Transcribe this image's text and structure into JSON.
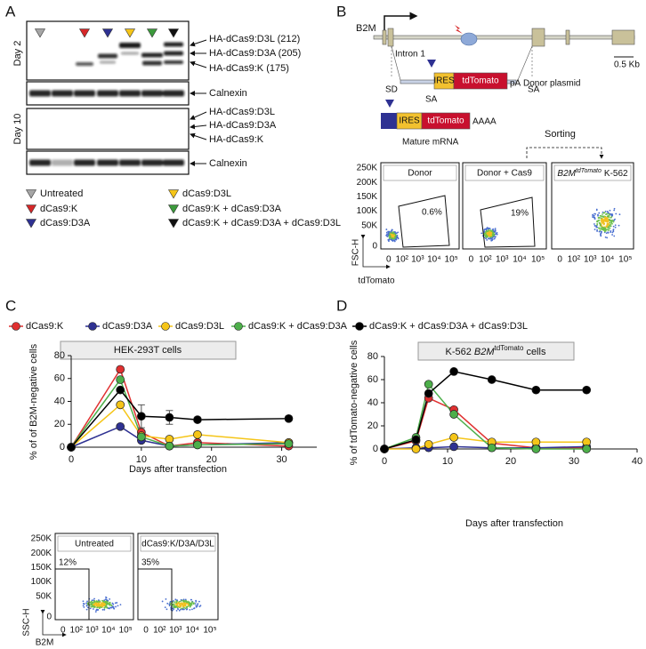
{
  "panel_a": {
    "label": "A",
    "day_labels": [
      "Day 2",
      "Day 10"
    ],
    "day2_bands": [
      "HA-dCas9:D3L (212)",
      "HA-dCas9:D3A (205)",
      "HA-dCas9:K (175)"
    ],
    "day10_bands": [
      "HA-dCas9:D3L",
      "HA-dCas9:D3A",
      "HA-dCas9:K"
    ],
    "loading_control": "Calnexin",
    "legend": [
      {
        "name": "Untreated",
        "color": "#a6a6a6"
      },
      {
        "name": "dCas9:K",
        "color": "#d62728"
      },
      {
        "name": "dCas9:D3A",
        "color": "#2e3192"
      },
      {
        "name": "dCas9:D3L",
        "color": "#f5c518"
      },
      {
        "name": "dCas9:K + dCas9:D3A",
        "color": "#3c9a3c"
      },
      {
        "name": "dCas9:K + dCas9:D3A + dCas9:D3L",
        "color": "#111111"
      }
    ]
  },
  "panel_b": {
    "label": "B",
    "gene": "B2M",
    "intron": "Intron 1",
    "sd": "SD",
    "sa": "SA",
    "scale": "0.5 Kb",
    "ires": "IRES",
    "reporter": "tdTomato",
    "polya": "pA",
    "donor": "Donor plasmid",
    "polya_tail": "AAAA",
    "mrna": "Mature mRNA",
    "sorting": "Sorting",
    "flow": {
      "y_axis": "FSC-H",
      "x_axis": "tdTomato",
      "yticks": [
        "250K",
        "200K",
        "150K",
        "100K",
        "50K",
        "0"
      ],
      "xticks": [
        "0",
        "10²",
        "10³",
        "10⁴",
        "10⁵"
      ],
      "plots": [
        {
          "title": "Donor",
          "gate": "0.6%"
        },
        {
          "title": "Donor + Cas9",
          "gate": "19%"
        },
        {
          "title_gene": "B2M",
          "title_sup": "tdTomato",
          "title_suffix": "K-562"
        }
      ]
    }
  },
  "panel_c_flow": {
    "y_axis": "SSC-H",
    "x_axis": "B2M",
    "yticks": [
      "250K",
      "200K",
      "150K",
      "100K",
      "50K",
      "0"
    ],
    "xticks": [
      "0",
      "10²",
      "10³",
      "10⁴",
      "10⁵"
    ],
    "plots": [
      {
        "title": "Untreated",
        "gate": "12%"
      },
      {
        "title": "dCas9:K/D3A/D3L",
        "gate": "35%"
      }
    ]
  },
  "chart_data": [
    {
      "type": "line",
      "label": "C",
      "title": "HEK-293T cells",
      "y_label": "% of of B2M-negative cells",
      "x_label": "Days after transfection",
      "x": [
        0,
        7,
        10,
        14,
        18,
        31
      ],
      "xlim": [
        0,
        35
      ],
      "xticks": [
        0,
        10,
        20,
        30
      ],
      "ylim": [
        0,
        80
      ],
      "yticks": [
        0,
        20,
        40,
        60,
        80
      ],
      "series": [
        {
          "name": "dCas9:K",
          "color": "#e03030",
          "values": [
            0,
            68,
            13,
            1,
            4,
            1
          ]
        },
        {
          "name": "dCas9:D3A",
          "color": "#2e3192",
          "values": [
            0,
            18,
            6,
            1,
            2,
            4
          ]
        },
        {
          "name": "dCas9:D3L",
          "color": "#f5c518",
          "values": [
            0,
            37,
            10,
            7,
            11,
            4
          ]
        },
        {
          "name": "dCas9:K + dCas9:D3A",
          "color": "#4daf4a",
          "values": [
            0,
            59,
            9,
            1,
            2,
            3
          ]
        },
        {
          "name": "dCas9:K + dCas9:D3A + dCas9:D3L",
          "color": "#000000",
          "values": [
            0,
            50,
            27,
            26,
            24,
            25
          ],
          "errors": [
            null,
            null,
            10,
            6,
            null,
            2
          ]
        }
      ]
    },
    {
      "type": "line",
      "label": "D",
      "title": "K-562",
      "title_gene": "B2M",
      "title_sup": "tdTomato",
      "title_suffix": "cells",
      "y_label": "% of tdTomato-negative cells",
      "x_label": "Days after transfection",
      "x": [
        0,
        5,
        7,
        11,
        17,
        24,
        32
      ],
      "xlim": [
        0,
        40
      ],
      "xticks": [
        0,
        10,
        20,
        30,
        40
      ],
      "ylim": [
        0,
        80
      ],
      "yticks": [
        0,
        20,
        40,
        60,
        80
      ],
      "series": [
        {
          "color": "#e03030",
          "values": [
            0,
            7,
            44,
            34,
            5,
            1,
            1
          ]
        },
        {
          "color": "#2e3192",
          "values": [
            0,
            1,
            1,
            2,
            1,
            1,
            2
          ]
        },
        {
          "color": "#f5c518",
          "values": [
            0,
            0,
            4,
            10,
            6,
            6,
            6
          ]
        },
        {
          "color": "#4daf4a",
          "values": [
            0,
            10,
            56,
            30,
            1,
            0,
            0
          ]
        },
        {
          "color": "#000000",
          "values": [
            0,
            8,
            48,
            67,
            60,
            51,
            51
          ]
        }
      ]
    }
  ]
}
